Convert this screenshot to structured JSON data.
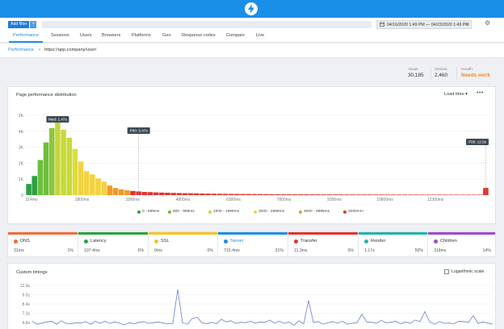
{
  "header": {
    "logo_icon": "lightning-bolt-icon",
    "brand_color": "#1a8fe8"
  },
  "filters": {
    "add_filter_label": "Add filter",
    "add_icon": "+",
    "date_range": "04/16/2020 1:49 PM — 04/23/2020 1:49 PM",
    "calendar_icon": "calendar-icon",
    "clear_icon": "✕",
    "settings_icon": "gear-icon"
  },
  "nav": {
    "tabs": [
      "Performance",
      "Sessions",
      "Users",
      "Browsers",
      "Platforms",
      "Geo",
      "Response codes",
      "Compare",
      "Live"
    ]
  },
  "breadcrumb": {
    "section": "Performance",
    "separator": ">",
    "page": "https://app.company/user/"
  },
  "stats": {
    "views": {
      "label": "Views",
      "value": "30,185"
    },
    "visitors": {
      "label": "Visitors",
      "value": "2,460"
    },
    "health": {
      "label": "Health",
      "value": "Needs work"
    }
  },
  "distribution": {
    "title": "Page performance distribution",
    "metric_select": "Load time ▾",
    "more": "•••",
    "markers": {
      "median": "Med: 1.47s",
      "p90": "P90: 3.47s",
      "p99": "P99: 12.6s"
    },
    "legend": [
      {
        "label": "0 - 599ms",
        "color": "#2ea043"
      },
      {
        "label": "600 - 999ms",
        "color": "#6cbf3b"
      },
      {
        "label": "1000 - 1999ms",
        "color": "#c8d93a"
      },
      {
        "label": "2000 - 2999ms",
        "color": "#f3d240"
      },
      {
        "label": "3000 - 3999ms",
        "color": "#f29a26"
      },
      {
        "label": "4000ms+",
        "color": "#e2332d"
      }
    ]
  },
  "chart_data": {
    "type": "bar",
    "title": "Page performance distribution",
    "y_ticks": [
      "0",
      "1K",
      "2K",
      "3K",
      "4K",
      "5K"
    ],
    "x_ticks": [
      "314ms",
      "1800ms",
      "3300ms",
      "4800ms",
      "6300ms",
      "7800ms",
      "9300ms",
      "10800ms",
      "12300ms"
    ],
    "ylim": [
      0,
      5000
    ],
    "values": [
      700,
      1200,
      2200,
      3300,
      4200,
      4800,
      4100,
      3600,
      2900,
      2100,
      1500,
      1300,
      1050,
      850,
      600,
      450,
      360,
      310,
      260,
      230,
      200,
      190,
      170,
      160,
      150,
      140,
      130,
      120,
      115,
      110,
      100,
      95,
      90,
      85,
      80,
      78,
      75,
      72,
      70,
      68,
      65,
      62,
      60,
      58,
      56,
      55,
      54,
      52,
      50,
      48,
      47,
      46,
      45,
      44,
      43,
      42,
      41,
      40,
      40,
      39,
      38,
      37,
      36,
      36,
      35,
      35,
      34,
      34,
      33,
      33,
      32,
      32,
      31,
      31,
      30,
      30,
      30,
      30,
      30,
      450
    ],
    "colors": [
      "#2ea043",
      "#2ea043",
      "#6cbf3b",
      "#6cbf3b",
      "#8dc63f",
      "#c8d93a",
      "#c8d93a",
      "#c8d93a",
      "#d9de3a",
      "#f3d240",
      "#f3d240",
      "#f3d240",
      "#f3d240",
      "#f3d240",
      "#f29a26",
      "#f29a26",
      "#f29a26",
      "#f29a26",
      "#e2332d"
    ],
    "grid": true
  },
  "metrics": [
    {
      "name": "DNS",
      "color": "#f26b3a",
      "ms": "31ms",
      "pct": "1%"
    },
    {
      "name": "Latency",
      "color": "#2ea043",
      "ms": "107.4ms",
      "pct": "5%"
    },
    {
      "name": "SSL",
      "color": "#f3c623",
      "ms": "0ms",
      "pct": "0%"
    },
    {
      "name": "Server",
      "color": "#1a8fe8",
      "ms": "715.4ms",
      "pct": "31%"
    },
    {
      "name": "Transfer",
      "color": "#e2332d",
      "ms": "11.3ms",
      "pct": "0%"
    },
    {
      "name": "Render",
      "color": "#1fb5a8",
      "ms": "1.17s",
      "pct": "50%"
    },
    {
      "name": "Children",
      "color": "#9b4dca",
      "ms": "318ms",
      "pct": "14%"
    }
  ],
  "custom_timings": {
    "title": "Custom timings",
    "log_scale_label": "Logarithmic scale",
    "y_ticks": [
      "12.9s",
      "9.5s",
      "8.4s",
      "7.3s",
      "4.8s"
    ],
    "series": [
      3.6,
      2.8,
      3.1,
      3.4,
      3.6,
      2.8,
      3.7,
      3.0,
      2.9,
      3.2,
      3.1,
      3.5,
      2.8,
      3.6,
      3.0,
      3.6,
      3.0,
      3.4,
      3.1,
      2.6,
      3.2,
      2.9,
      3.3,
      3.5,
      3.0,
      3.2,
      3.4,
      3.1,
      2.9,
      3.0,
      11.9,
      3.2,
      2.8,
      4.3,
      4.6,
      3.2,
      2.9,
      3.3,
      2.9,
      4.1,
      3.4,
      3.7,
      3.0,
      3.3,
      3.2,
      3.6,
      3.1,
      3.4,
      3.3,
      3.9,
      3.1,
      3.6,
      3.0,
      3.4,
      2.5,
      3.7,
      2.9,
      9.0,
      3.3,
      3.5,
      2.8,
      3.2,
      3.5,
      3.1,
      3.6,
      2.8,
      3.0,
      3.2,
      5.4,
      3.4,
      3.3,
      3.0,
      3.8,
      3.2,
      3.3,
      3.6,
      2.9,
      3.4,
      3.0,
      3.9,
      3.5,
      6.1,
      3.4,
      2.8,
      3.5,
      3.0,
      3.1,
      2.9,
      3.6,
      3.5,
      3.3,
      5.0,
      3.0,
      3.4,
      3.1,
      2.8
    ]
  }
}
